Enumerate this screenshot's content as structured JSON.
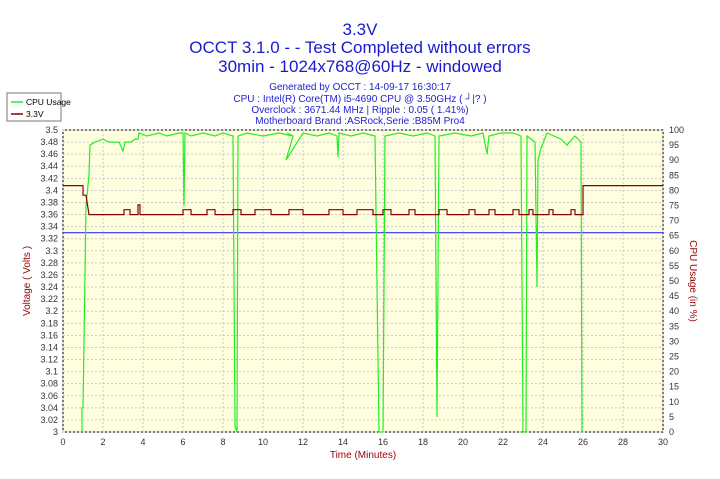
{
  "chart_data": {
    "type": "line",
    "title": "3.3V",
    "subtitle_lines": [
      "OCCT 3.1.0 -  - Test Completed without errors",
      "30min - 1024x768@60Hz - windowed"
    ],
    "info_lines": [
      "Generated by OCCT : 14-09-17 16:30:17",
      "CPU : Intel(R) Core(TM) i5-4690 CPU @ 3.50GHz ( ┘|? )",
      "Overclock : 3671.44 MHz | Ripple : 0.05 ( 1.41%)",
      "Motherboard Brand :ASRock,Serie :B85M Pro4"
    ],
    "xlabel": "Time (Minutes)",
    "ylabel": "Voltage ( Volts )",
    "y2label": "CPU Usage (in %)",
    "xlim": [
      0,
      30
    ],
    "ylim": [
      3.0,
      3.5
    ],
    "y2lim": [
      0,
      100
    ],
    "x_ticks": [
      "0",
      "2",
      "4",
      "6",
      "8",
      "10",
      "12",
      "14",
      "16",
      "18",
      "20",
      "22",
      "24",
      "26",
      "28",
      "30"
    ],
    "y_ticks": [
      "3.5",
      "3.48",
      "3.46",
      "3.44",
      "3.42",
      "3.4",
      "3.38",
      "3.36",
      "3.34",
      "3.32",
      "3.3",
      "3.28",
      "3.26",
      "3.24",
      "3.22",
      "3.2",
      "3.18",
      "3.16",
      "3.14",
      "3.12",
      "3.1",
      "3.08",
      "3.06",
      "3.04",
      "3.02",
      "3"
    ],
    "y2_ticks": [
      "100",
      "95",
      "90",
      "85",
      "80",
      "75",
      "70",
      "65",
      "60",
      "55",
      "50",
      "45",
      "40",
      "35",
      "30",
      "25",
      "20",
      "15",
      "10",
      "5",
      "0"
    ],
    "reference_line": {
      "value": 3.33,
      "color": "#3333ff"
    },
    "legend_position": "top-left",
    "grid": true,
    "series": [
      {
        "name": "CPU Usage",
        "axis": "right",
        "color": "#22ee22",
        "points": [
          [
            0.95,
            0
          ],
          [
            0.95,
            8
          ],
          [
            1.0,
            8
          ],
          [
            1.05,
            30
          ],
          [
            1.15,
            75
          ],
          [
            1.3,
            85
          ],
          [
            1.35,
            95
          ],
          [
            1.6,
            96
          ],
          [
            2.0,
            97
          ],
          [
            2.3,
            96
          ],
          [
            2.8,
            96
          ],
          [
            3.0,
            93
          ],
          [
            3.1,
            96
          ],
          [
            3.4,
            96
          ],
          [
            3.6,
            97
          ],
          [
            3.75,
            97
          ],
          [
            3.8,
            99
          ],
          [
            4.2,
            98
          ],
          [
            4.8,
            99
          ],
          [
            5.2,
            98
          ],
          [
            5.8,
            99
          ],
          [
            6.0,
            99
          ],
          [
            6.05,
            75
          ],
          [
            6.1,
            99
          ],
          [
            6.4,
            98
          ],
          [
            7.0,
            99
          ],
          [
            7.6,
            98
          ],
          [
            8.0,
            99
          ],
          [
            8.5,
            98
          ],
          [
            8.6,
            2
          ],
          [
            8.7,
            0
          ],
          [
            8.75,
            98
          ],
          [
            9.2,
            99
          ],
          [
            10.0,
            98
          ],
          [
            10.8,
            99
          ],
          [
            11.5,
            98
          ],
          [
            11.2,
            99
          ],
          [
            11.5,
            98
          ],
          [
            11.15,
            90
          ],
          [
            12.0,
            99
          ],
          [
            12.7,
            98
          ],
          [
            13.3,
            99
          ],
          [
            13.7,
            98
          ],
          [
            13.75,
            91
          ],
          [
            13.8,
            99
          ],
          [
            14.4,
            98
          ],
          [
            15.0,
            99
          ],
          [
            15.6,
            98
          ],
          [
            15.8,
            0
          ],
          [
            16.0,
            0
          ],
          [
            16.1,
            98
          ],
          [
            16.8,
            99
          ],
          [
            17.5,
            98
          ],
          [
            18.2,
            99
          ],
          [
            18.6,
            98
          ],
          [
            18.7,
            5
          ],
          [
            18.8,
            98
          ],
          [
            19.6,
            99
          ],
          [
            20.4,
            98
          ],
          [
            21.0,
            99
          ],
          [
            21.2,
            92
          ],
          [
            21.3,
            98
          ],
          [
            21.9,
            99
          ],
          [
            22.5,
            99
          ],
          [
            22.9,
            98
          ],
          [
            23.0,
            0
          ],
          [
            23.15,
            0
          ],
          [
            23.2,
            98
          ],
          [
            23.6,
            96
          ],
          [
            23.7,
            48
          ],
          [
            23.75,
            90
          ],
          [
            23.9,
            94
          ],
          [
            24.2,
            99
          ],
          [
            24.9,
            97
          ],
          [
            25.2,
            95
          ],
          [
            25.6,
            98
          ],
          [
            25.9,
            96
          ],
          [
            25.95,
            0
          ],
          [
            26.0,
            0
          ]
        ]
      },
      {
        "name": "3.3V",
        "axis": "left",
        "color": "#880000",
        "points": [
          [
            0,
            3.408
          ],
          [
            1.0,
            3.408
          ],
          [
            1.0,
            3.392
          ],
          [
            1.15,
            3.392
          ],
          [
            1.3,
            3.36
          ],
          [
            3.05,
            3.36
          ],
          [
            3.05,
            3.368
          ],
          [
            3.35,
            3.368
          ],
          [
            3.35,
            3.36
          ],
          [
            3.75,
            3.36
          ],
          [
            3.75,
            3.376
          ],
          [
            3.85,
            3.376
          ],
          [
            3.85,
            3.36
          ],
          [
            6.0,
            3.36
          ],
          [
            6.0,
            3.368
          ],
          [
            6.4,
            3.368
          ],
          [
            6.4,
            3.36
          ],
          [
            7.2,
            3.36
          ],
          [
            7.2,
            3.368
          ],
          [
            7.6,
            3.368
          ],
          [
            7.6,
            3.36
          ],
          [
            8.5,
            3.36
          ],
          [
            8.5,
            3.368
          ],
          [
            8.9,
            3.368
          ],
          [
            8.9,
            3.36
          ],
          [
            9.6,
            3.36
          ],
          [
            9.6,
            3.368
          ],
          [
            10.4,
            3.368
          ],
          [
            10.4,
            3.36
          ],
          [
            11.3,
            3.36
          ],
          [
            11.3,
            3.368
          ],
          [
            12.0,
            3.368
          ],
          [
            12.0,
            3.36
          ],
          [
            13.3,
            3.36
          ],
          [
            13.3,
            3.368
          ],
          [
            14.0,
            3.368
          ],
          [
            14.0,
            3.36
          ],
          [
            14.7,
            3.36
          ],
          [
            14.7,
            3.368
          ],
          [
            15.5,
            3.368
          ],
          [
            15.5,
            3.36
          ],
          [
            16.0,
            3.36
          ],
          [
            16.0,
            3.368
          ],
          [
            16.4,
            3.368
          ],
          [
            16.4,
            3.36
          ],
          [
            17.3,
            3.36
          ],
          [
            17.3,
            3.368
          ],
          [
            17.6,
            3.368
          ],
          [
            17.6,
            3.36
          ],
          [
            18.8,
            3.36
          ],
          [
            18.8,
            3.368
          ],
          [
            19.2,
            3.368
          ],
          [
            19.2,
            3.36
          ],
          [
            20.3,
            3.36
          ],
          [
            20.3,
            3.368
          ],
          [
            20.6,
            3.368
          ],
          [
            20.6,
            3.36
          ],
          [
            21.3,
            3.36
          ],
          [
            21.3,
            3.368
          ],
          [
            21.6,
            3.368
          ],
          [
            21.6,
            3.36
          ],
          [
            22.5,
            3.36
          ],
          [
            22.5,
            3.368
          ],
          [
            22.8,
            3.368
          ],
          [
            22.8,
            3.36
          ],
          [
            23.3,
            3.36
          ],
          [
            23.3,
            3.368
          ],
          [
            23.5,
            3.368
          ],
          [
            23.5,
            3.36
          ],
          [
            24.3,
            3.36
          ],
          [
            24.3,
            3.368
          ],
          [
            24.5,
            3.368
          ],
          [
            24.5,
            3.36
          ],
          [
            25.4,
            3.36
          ],
          [
            25.4,
            3.368
          ],
          [
            25.6,
            3.368
          ],
          [
            25.6,
            3.36
          ],
          [
            26.0,
            3.36
          ],
          [
            26.0,
            3.408
          ],
          [
            30,
            3.408
          ]
        ]
      }
    ]
  }
}
